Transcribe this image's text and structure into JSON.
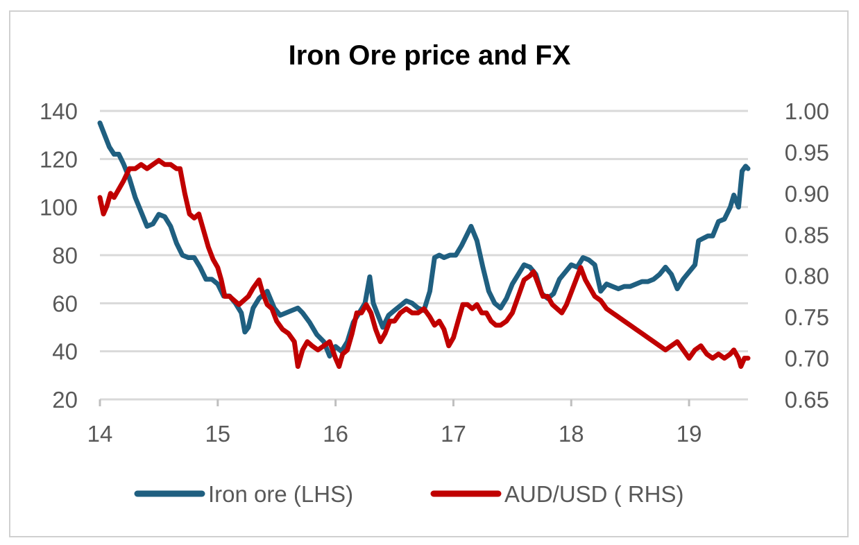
{
  "chart_data": {
    "type": "line",
    "title": "Iron Ore price and FX",
    "xlabel": "",
    "ylabel_left": "",
    "ylabel_right": "",
    "x_ticks": [
      "14",
      "15",
      "16",
      "17",
      "18",
      "19"
    ],
    "x_range": [
      14,
      19.5
    ],
    "y_left": {
      "range": [
        20,
        140
      ],
      "ticks": [
        "20",
        "40",
        "60",
        "80",
        "100",
        "120",
        "140"
      ]
    },
    "y_right": {
      "range": [
        0.65,
        1.0
      ],
      "ticks": [
        "0.65",
        "0.70",
        "0.75",
        "0.80",
        "0.85",
        "0.90",
        "0.95",
        "1.00"
      ]
    },
    "grid": "horizontal",
    "legend_position": "bottom",
    "series": [
      {
        "name": "Iron ore (LHS)",
        "axis": "left",
        "color": "#1f5f80",
        "points": [
          [
            14.0,
            135
          ],
          [
            14.04,
            130
          ],
          [
            14.08,
            125
          ],
          [
            14.12,
            122
          ],
          [
            14.16,
            122
          ],
          [
            14.2,
            118
          ],
          [
            14.25,
            112
          ],
          [
            14.3,
            104
          ],
          [
            14.35,
            98
          ],
          [
            14.4,
            92
          ],
          [
            14.45,
            93
          ],
          [
            14.5,
            97
          ],
          [
            14.55,
            96
          ],
          [
            14.6,
            92
          ],
          [
            14.65,
            85
          ],
          [
            14.7,
            80
          ],
          [
            14.75,
            79
          ],
          [
            14.8,
            79
          ],
          [
            14.85,
            75
          ],
          [
            14.9,
            70
          ],
          [
            14.95,
            70
          ],
          [
            15.0,
            68
          ],
          [
            15.05,
            63
          ],
          [
            15.1,
            63
          ],
          [
            15.15,
            60
          ],
          [
            15.2,
            56
          ],
          [
            15.23,
            48
          ],
          [
            15.26,
            50
          ],
          [
            15.3,
            58
          ],
          [
            15.35,
            62
          ],
          [
            15.42,
            65
          ],
          [
            15.48,
            58
          ],
          [
            15.53,
            55
          ],
          [
            15.58,
            56
          ],
          [
            15.63,
            57
          ],
          [
            15.68,
            58
          ],
          [
            15.72,
            56
          ],
          [
            15.78,
            52
          ],
          [
            15.84,
            47
          ],
          [
            15.9,
            44
          ],
          [
            15.95,
            38
          ],
          [
            16.0,
            42
          ],
          [
            16.05,
            40
          ],
          [
            16.1,
            44
          ],
          [
            16.15,
            52
          ],
          [
            16.2,
            56
          ],
          [
            16.25,
            60
          ],
          [
            16.29,
            71
          ],
          [
            16.32,
            60
          ],
          [
            16.36,
            55
          ],
          [
            16.4,
            50
          ],
          [
            16.45,
            55
          ],
          [
            16.5,
            57
          ],
          [
            16.55,
            59
          ],
          [
            16.6,
            61
          ],
          [
            16.65,
            60
          ],
          [
            16.7,
            58
          ],
          [
            16.75,
            57
          ],
          [
            16.8,
            65
          ],
          [
            16.84,
            79
          ],
          [
            16.88,
            80
          ],
          [
            16.92,
            79
          ],
          [
            16.97,
            80
          ],
          [
            17.02,
            80
          ],
          [
            17.07,
            84
          ],
          [
            17.11,
            88
          ],
          [
            17.15,
            92
          ],
          [
            17.2,
            86
          ],
          [
            17.25,
            75
          ],
          [
            17.3,
            65
          ],
          [
            17.35,
            60
          ],
          [
            17.4,
            58
          ],
          [
            17.45,
            62
          ],
          [
            17.5,
            68
          ],
          [
            17.55,
            72
          ],
          [
            17.6,
            76
          ],
          [
            17.65,
            75
          ],
          [
            17.7,
            72
          ],
          [
            17.75,
            64
          ],
          [
            17.8,
            62
          ],
          [
            17.85,
            64
          ],
          [
            17.9,
            70
          ],
          [
            17.95,
            73
          ],
          [
            18.0,
            76
          ],
          [
            18.05,
            75
          ],
          [
            18.1,
            79
          ],
          [
            18.15,
            78
          ],
          [
            18.2,
            76
          ],
          [
            18.25,
            65
          ],
          [
            18.3,
            68
          ],
          [
            18.35,
            67
          ],
          [
            18.4,
            66
          ],
          [
            18.45,
            67
          ],
          [
            18.5,
            67
          ],
          [
            18.55,
            68
          ],
          [
            18.6,
            69
          ],
          [
            18.65,
            69
          ],
          [
            18.7,
            70
          ],
          [
            18.75,
            72
          ],
          [
            18.8,
            75
          ],
          [
            18.85,
            72
          ],
          [
            18.9,
            66
          ],
          [
            18.95,
            70
          ],
          [
            19.0,
            73
          ],
          [
            19.05,
            76
          ],
          [
            19.08,
            86
          ],
          [
            19.12,
            87
          ],
          [
            19.16,
            88
          ],
          [
            19.2,
            88
          ],
          [
            19.25,
            94
          ],
          [
            19.3,
            95
          ],
          [
            19.35,
            100
          ],
          [
            19.38,
            105
          ],
          [
            19.42,
            100
          ],
          [
            19.45,
            115
          ],
          [
            19.48,
            117
          ],
          [
            19.5,
            116
          ]
        ]
      },
      {
        "name": "AUD/USD ( RHS)",
        "axis": "right",
        "color": "#c00000",
        "points": [
          [
            14.0,
            0.895
          ],
          [
            14.03,
            0.875
          ],
          [
            14.06,
            0.885
          ],
          [
            14.09,
            0.9
          ],
          [
            14.12,
            0.895
          ],
          [
            14.16,
            0.905
          ],
          [
            14.2,
            0.915
          ],
          [
            14.25,
            0.93
          ],
          [
            14.3,
            0.93
          ],
          [
            14.35,
            0.935
          ],
          [
            14.4,
            0.93
          ],
          [
            14.45,
            0.935
          ],
          [
            14.5,
            0.94
          ],
          [
            14.55,
            0.935
          ],
          [
            14.6,
            0.935
          ],
          [
            14.65,
            0.93
          ],
          [
            14.68,
            0.93
          ],
          [
            14.72,
            0.9
          ],
          [
            14.76,
            0.875
          ],
          [
            14.8,
            0.87
          ],
          [
            14.84,
            0.875
          ],
          [
            14.88,
            0.855
          ],
          [
            14.92,
            0.835
          ],
          [
            14.96,
            0.82
          ],
          [
            15.0,
            0.81
          ],
          [
            15.03,
            0.795
          ],
          [
            15.06,
            0.775
          ],
          [
            15.1,
            0.775
          ],
          [
            15.14,
            0.77
          ],
          [
            15.18,
            0.765
          ],
          [
            15.22,
            0.77
          ],
          [
            15.26,
            0.775
          ],
          [
            15.3,
            0.785
          ],
          [
            15.35,
            0.795
          ],
          [
            15.38,
            0.78
          ],
          [
            15.42,
            0.765
          ],
          [
            15.46,
            0.76
          ],
          [
            15.5,
            0.745
          ],
          [
            15.55,
            0.735
          ],
          [
            15.6,
            0.73
          ],
          [
            15.65,
            0.72
          ],
          [
            15.68,
            0.69
          ],
          [
            15.72,
            0.71
          ],
          [
            15.76,
            0.72
          ],
          [
            15.8,
            0.715
          ],
          [
            15.85,
            0.71
          ],
          [
            15.9,
            0.715
          ],
          [
            15.95,
            0.72
          ],
          [
            16.0,
            0.7
          ],
          [
            16.03,
            0.69
          ],
          [
            16.06,
            0.705
          ],
          [
            16.1,
            0.71
          ],
          [
            16.14,
            0.73
          ],
          [
            16.18,
            0.755
          ],
          [
            16.22,
            0.755
          ],
          [
            16.26,
            0.765
          ],
          [
            16.3,
            0.755
          ],
          [
            16.34,
            0.735
          ],
          [
            16.38,
            0.72
          ],
          [
            16.42,
            0.73
          ],
          [
            16.46,
            0.745
          ],
          [
            16.5,
            0.745
          ],
          [
            16.55,
            0.755
          ],
          [
            16.6,
            0.76
          ],
          [
            16.65,
            0.755
          ],
          [
            16.7,
            0.755
          ],
          [
            16.75,
            0.76
          ],
          [
            16.8,
            0.75
          ],
          [
            16.84,
            0.74
          ],
          [
            16.88,
            0.745
          ],
          [
            16.92,
            0.735
          ],
          [
            16.96,
            0.715
          ],
          [
            17.0,
            0.725
          ],
          [
            17.04,
            0.745
          ],
          [
            17.08,
            0.765
          ],
          [
            17.12,
            0.765
          ],
          [
            17.16,
            0.76
          ],
          [
            17.2,
            0.765
          ],
          [
            17.24,
            0.755
          ],
          [
            17.28,
            0.755
          ],
          [
            17.32,
            0.745
          ],
          [
            17.36,
            0.74
          ],
          [
            17.4,
            0.74
          ],
          [
            17.45,
            0.745
          ],
          [
            17.5,
            0.755
          ],
          [
            17.55,
            0.775
          ],
          [
            17.6,
            0.795
          ],
          [
            17.65,
            0.8
          ],
          [
            17.68,
            0.805
          ],
          [
            17.72,
            0.79
          ],
          [
            17.76,
            0.775
          ],
          [
            17.8,
            0.775
          ],
          [
            17.84,
            0.765
          ],
          [
            17.88,
            0.76
          ],
          [
            17.92,
            0.755
          ],
          [
            17.96,
            0.765
          ],
          [
            18.0,
            0.78
          ],
          [
            18.04,
            0.795
          ],
          [
            18.08,
            0.81
          ],
          [
            18.12,
            0.795
          ],
          [
            18.16,
            0.785
          ],
          [
            18.2,
            0.775
          ],
          [
            18.25,
            0.77
          ],
          [
            18.3,
            0.76
          ],
          [
            18.35,
            0.755
          ],
          [
            18.4,
            0.75
          ],
          [
            18.45,
            0.745
          ],
          [
            18.5,
            0.74
          ],
          [
            18.55,
            0.735
          ],
          [
            18.6,
            0.73
          ],
          [
            18.65,
            0.725
          ],
          [
            18.7,
            0.72
          ],
          [
            18.75,
            0.715
          ],
          [
            18.8,
            0.71
          ],
          [
            18.85,
            0.715
          ],
          [
            18.9,
            0.72
          ],
          [
            18.95,
            0.71
          ],
          [
            19.0,
            0.7
          ],
          [
            19.05,
            0.71
          ],
          [
            19.1,
            0.715
          ],
          [
            19.15,
            0.705
          ],
          [
            19.2,
            0.7
          ],
          [
            19.25,
            0.705
          ],
          [
            19.3,
            0.7
          ],
          [
            19.35,
            0.705
          ],
          [
            19.38,
            0.71
          ],
          [
            19.42,
            0.7
          ],
          [
            19.44,
            0.69
          ],
          [
            19.47,
            0.7
          ],
          [
            19.5,
            0.7
          ]
        ]
      }
    ]
  }
}
